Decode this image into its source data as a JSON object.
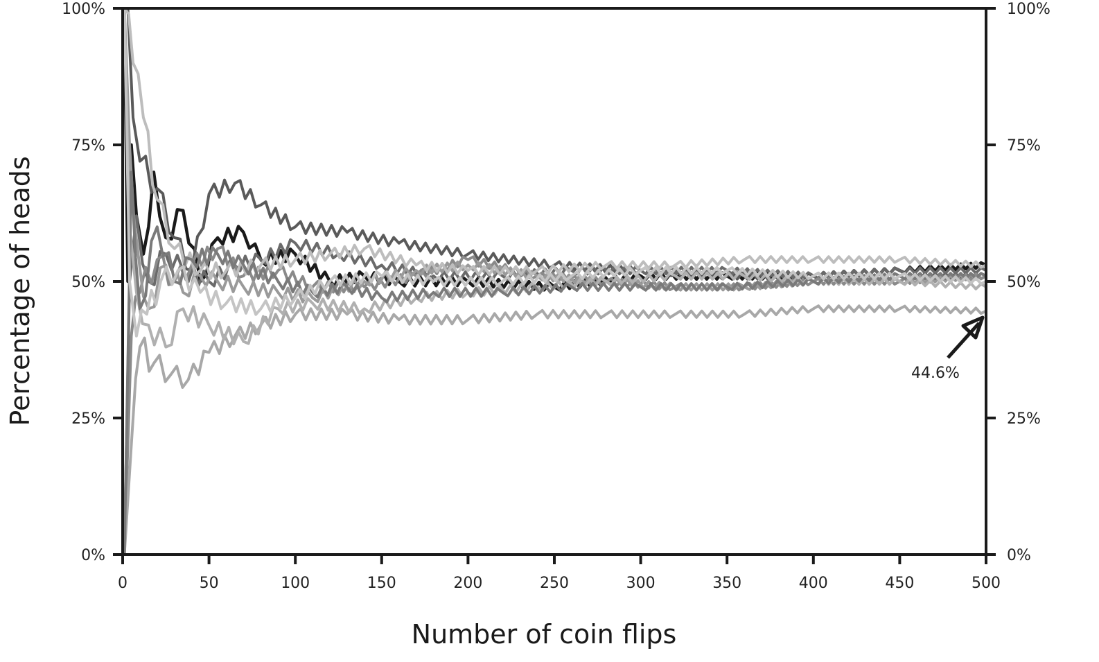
{
  "chart_data": {
    "type": "line",
    "title": "",
    "xlabel": "Number of coin flips",
    "ylabel": "Percentage of heads",
    "xlim": [
      0,
      500
    ],
    "ylim": [
      0,
      100
    ],
    "x_ticks": [
      0,
      50,
      100,
      150,
      200,
      250,
      300,
      350,
      400,
      450,
      500
    ],
    "x_tick_labels": [
      "0",
      "50",
      "100",
      "150",
      "200",
      "250",
      "300",
      "350",
      "400",
      "450",
      "500"
    ],
    "y_ticks": [
      0,
      25,
      50,
      75,
      100
    ],
    "y_tick_labels": [
      "0%",
      "25%",
      "50%",
      "75%",
      "100%"
    ],
    "right_axis_tick_labels": [
      "0%",
      "25%",
      "50%",
      "75%",
      "100%"
    ],
    "grid": false,
    "legend": "none",
    "annotations": [
      {
        "text": "44.6%",
        "x": 500,
        "y": 44.6,
        "arrow": true
      }
    ],
    "series": [
      {
        "color": "#1a1a1a",
        "x": [
          1,
          3,
          5,
          8,
          12,
          18,
          25,
          35,
          45,
          55,
          70,
          80,
          100,
          120,
          140,
          160,
          200,
          250,
          300,
          350,
          400,
          450,
          500
        ],
        "y": [
          100,
          50,
          75,
          62,
          55,
          70,
          58,
          63,
          50,
          58,
          59,
          54,
          55,
          50,
          51,
          50,
          50,
          49,
          51,
          51,
          51,
          52,
          53
        ]
      },
      {
        "color": "#5a5a5a",
        "x": [
          1,
          3,
          6,
          10,
          20,
          30,
          40,
          50,
          65,
          80,
          100,
          130,
          160,
          200,
          250,
          300,
          350,
          400,
          450,
          500
        ],
        "y": [
          100,
          100,
          80,
          72,
          67,
          58,
          52,
          66,
          68,
          64,
          60,
          59,
          57,
          55,
          53,
          52,
          51,
          51,
          51,
          51
        ]
      },
      {
        "color": "#6a6a6a",
        "x": [
          1,
          4,
          8,
          15,
          25,
          35,
          50,
          65,
          80,
          100,
          125,
          150,
          180,
          220,
          260,
          300,
          350,
          400,
          450,
          500
        ],
        "y": [
          0,
          50,
          62,
          50,
          55,
          52,
          50,
          53,
          54,
          57,
          55,
          53,
          51,
          51,
          52,
          52,
          52,
          51,
          52,
          52
        ]
      },
      {
        "color": "#8a8a8a",
        "x": [
          1,
          5,
          10,
          20,
          30,
          40,
          55,
          70,
          90,
          110,
          140,
          170,
          200,
          240,
          280,
          320,
          360,
          400,
          450,
          500
        ],
        "y": [
          0,
          40,
          48,
          54,
          50,
          53,
          56,
          51,
          52,
          49,
          49,
          51,
          54,
          51,
          50,
          49,
          49,
          50,
          50,
          51
        ]
      },
      {
        "color": "#9a9a9a",
        "x": [
          1,
          4,
          9,
          15,
          25,
          35,
          45,
          55,
          70,
          90,
          110,
          140,
          170,
          200,
          240,
          280,
          320,
          360,
          400,
          450,
          500
        ],
        "y": [
          100,
          75,
          55,
          45,
          53,
          48,
          51,
          50,
          49,
          48,
          47,
          50,
          52,
          53,
          51,
          50,
          49,
          49,
          50,
          50,
          51
        ]
      },
      {
        "color": "#a8a8a8",
        "x": [
          1,
          5,
          10,
          18,
          28,
          38,
          50,
          65,
          80,
          100,
          130,
          160,
          200,
          240,
          280,
          320,
          360,
          400,
          450,
          500
        ],
        "y": [
          0,
          20,
          38,
          35,
          33,
          32,
          37,
          40,
          42,
          44,
          44,
          43,
          43,
          44,
          44,
          44,
          44,
          45,
          45,
          44.6
        ]
      },
      {
        "color": "#b0b0b0",
        "x": [
          1,
          4,
          8,
          15,
          25,
          35,
          50,
          70,
          90,
          110,
          140,
          170,
          200,
          240,
          280,
          320,
          360,
          400,
          450,
          500
        ],
        "y": [
          100,
          60,
          48,
          42,
          38,
          45,
          42,
          39,
          45,
          46,
          45,
          47,
          48,
          49,
          50,
          51,
          51,
          50,
          50,
          49
        ]
      },
      {
        "color": "#bdbdbd",
        "x": [
          1,
          6,
          12,
          20,
          30,
          45,
          60,
          80,
          100,
          120,
          140,
          170,
          200,
          240,
          280,
          320,
          360,
          400,
          450,
          500
        ],
        "y": [
          100,
          90,
          80,
          65,
          56,
          52,
          52,
          53,
          54,
          55,
          56,
          53,
          52,
          52,
          53,
          53,
          54,
          54,
          54,
          53
        ]
      },
      {
        "color": "#7a7a7a",
        "x": [
          1,
          5,
          10,
          20,
          30,
          40,
          55,
          70,
          90,
          110,
          130,
          150,
          180,
          220,
          260,
          300,
          350,
          400,
          450,
          500
        ],
        "y": [
          0,
          70,
          45,
          60,
          50,
          54,
          55,
          53,
          50,
          48,
          49,
          47,
          48,
          48,
          49,
          49,
          49,
          50,
          51,
          51
        ]
      },
      {
        "color": "#c4c4c4",
        "x": [
          1,
          4,
          8,
          14,
          22,
          32,
          45,
          60,
          80,
          100,
          120,
          150,
          180,
          220,
          260,
          300,
          350,
          400,
          450,
          500
        ],
        "y": [
          100,
          50,
          40,
          44,
          50,
          52,
          48,
          46,
          45,
          47,
          50,
          51,
          50,
          50,
          51,
          52,
          52,
          51,
          51,
          50
        ]
      }
    ]
  }
}
